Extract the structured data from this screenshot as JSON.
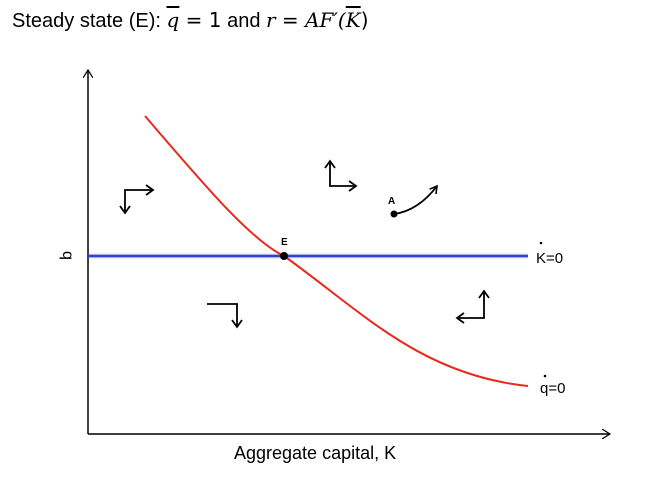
{
  "title": {
    "prefix": "Steady state (E): ",
    "q_symbol": "q",
    "equals_1": " = 1",
    "and_text": " and ",
    "r_symbol": "r",
    "equals_2": " = ",
    "rhs_a": "AF′(",
    "rhs_k": "K",
    "rhs_close": ")"
  },
  "axes": {
    "x_label": "Aggregate capital, K",
    "y_label": "q"
  },
  "curves": {
    "kdot_label": "K=0",
    "kdot_color": "#2a3fd6",
    "qdot_label": "q=0",
    "qdot_color": "#e8291c"
  },
  "points": {
    "steady_state_label": "E",
    "point_a_label": "A"
  },
  "arrow_color": "#000000",
  "phase_arrows": [
    {
      "region": "upper-left",
      "direction": "down-right"
    },
    {
      "region": "upper-right",
      "direction": "up-right"
    },
    {
      "region": "lower-left",
      "direction": "down-left"
    },
    {
      "region": "lower-right",
      "direction": "up-left"
    }
  ]
}
